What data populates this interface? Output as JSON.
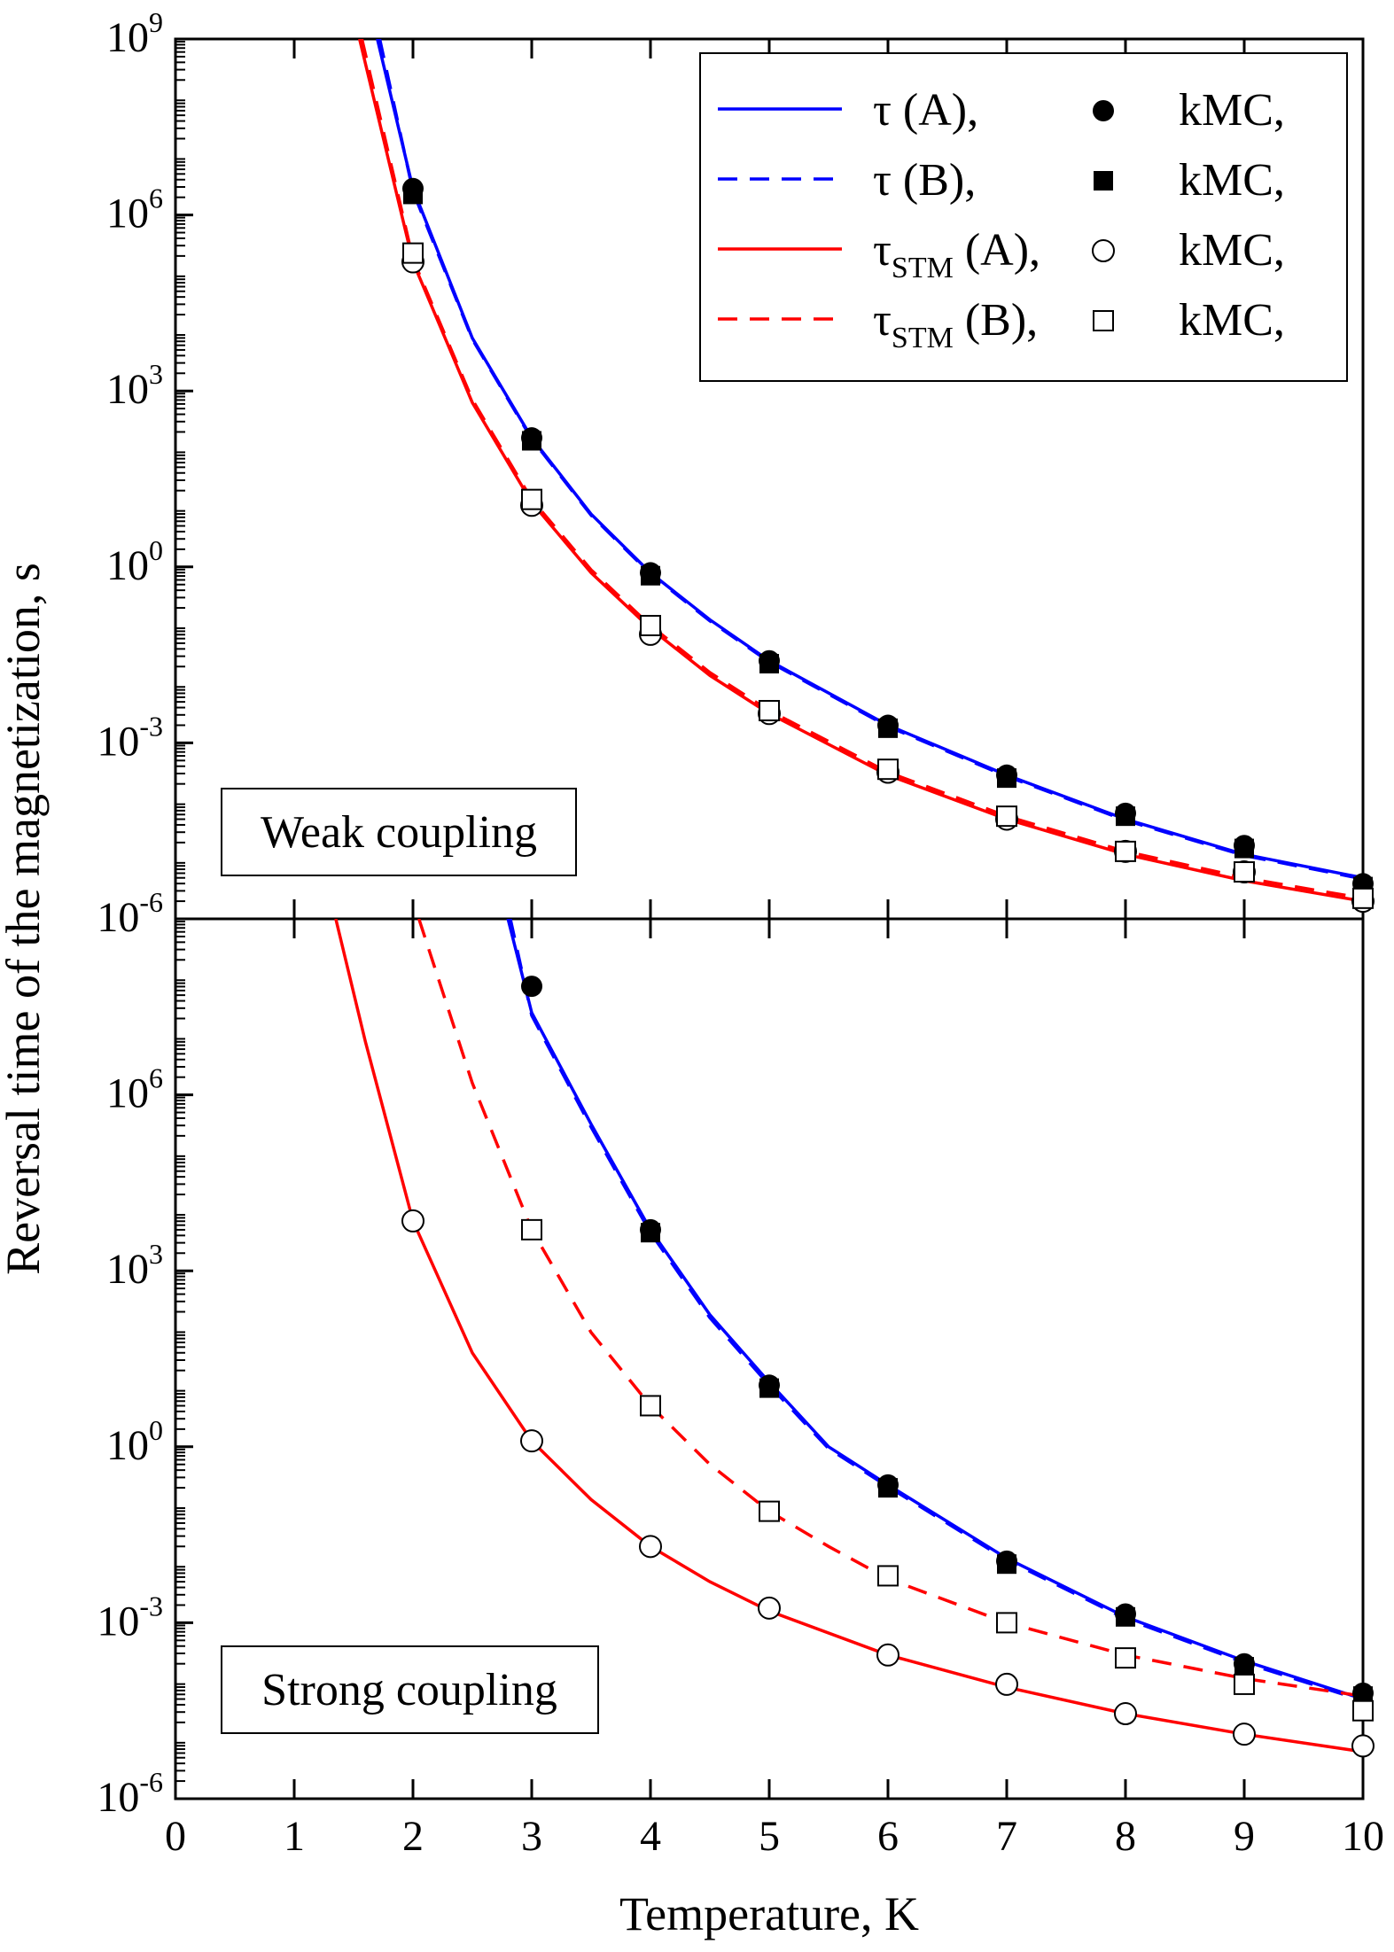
{
  "chart_data": [
    {
      "id": "weak",
      "type": "line",
      "panel": "top",
      "annotation": "Weak coupling",
      "xlim": [
        0,
        10
      ],
      "ylim_log10": [
        -6,
        9
      ],
      "y_tick_exponents": [
        "9",
        "6",
        "3",
        "0",
        "-3",
        "-6"
      ],
      "series": [
        {
          "key": "tauA",
          "name": "τ (A)",
          "style": "solid",
          "color": "#0000ff",
          "curve_log10": [
            [
              1.7,
              9.0
            ],
            [
              2.0,
              6.45
            ],
            [
              2.5,
              3.9
            ],
            [
              3.0,
              2.2
            ],
            [
              3.5,
              0.9
            ],
            [
              4.0,
              -0.1
            ],
            [
              4.5,
              -0.9
            ],
            [
              5.0,
              -1.6
            ],
            [
              6.0,
              -2.7
            ],
            [
              7.0,
              -3.55
            ],
            [
              8.0,
              -4.3
            ],
            [
              9.0,
              -4.9
            ],
            [
              10.0,
              -5.3
            ]
          ]
        },
        {
          "key": "tauB",
          "name": "τ (B)",
          "style": "dashed",
          "color": "#0000ff",
          "curve_log10": [
            [
              1.72,
              9.0
            ],
            [
              2.0,
              6.4
            ],
            [
              2.5,
              3.88
            ],
            [
              3.0,
              2.18
            ],
            [
              3.5,
              0.88
            ],
            [
              4.0,
              -0.12
            ],
            [
              4.5,
              -0.92
            ],
            [
              5.0,
              -1.62
            ],
            [
              6.0,
              -2.72
            ],
            [
              7.0,
              -3.57
            ],
            [
              8.0,
              -4.32
            ],
            [
              9.0,
              -4.92
            ],
            [
              10.0,
              -5.32
            ]
          ]
        },
        {
          "key": "stmA",
          "name": "STM",
          "style": "solid",
          "color": "#ff0000",
          "curve_log10": [
            [
              1.55,
              9.0
            ],
            [
              2.0,
              5.2
            ],
            [
              2.5,
              2.8
            ],
            [
              3.0,
              1.1
            ],
            [
              3.5,
              -0.1
            ],
            [
              4.0,
              -1.05
            ],
            [
              4.5,
              -1.85
            ],
            [
              5.0,
              -2.5
            ],
            [
              6.0,
              -3.55
            ],
            [
              7.0,
              -4.3
            ],
            [
              8.0,
              -4.9
            ],
            [
              9.0,
              -5.35
            ],
            [
              10.0,
              -5.7
            ]
          ]
        },
        {
          "key": "stmB",
          "name": "STM",
          "style": "dashed",
          "color": "#ff0000",
          "curve_log10": [
            [
              1.57,
              9.0
            ],
            [
              2.0,
              5.25
            ],
            [
              2.5,
              2.85
            ],
            [
              3.0,
              1.15
            ],
            [
              3.5,
              -0.05
            ],
            [
              4.0,
              -1.0
            ],
            [
              4.5,
              -1.8
            ],
            [
              5.0,
              -2.45
            ],
            [
              6.0,
              -3.5
            ],
            [
              7.0,
              -4.25
            ],
            [
              8.0,
              -4.85
            ],
            [
              9.0,
              -5.3
            ],
            [
              10.0,
              -5.65
            ]
          ]
        }
      ],
      "markers": [
        {
          "key": "filledCircle",
          "x": [
            2,
            3,
            4,
            5,
            6,
            7,
            8,
            9,
            10
          ],
          "log10": [
            6.45,
            2.2,
            -0.1,
            -1.6,
            -2.7,
            -3.55,
            -4.2,
            -4.75,
            -5.4
          ]
        },
        {
          "key": "filledSquare",
          "x": [
            2,
            3,
            4,
            5,
            6,
            7,
            8,
            9,
            10
          ],
          "log10": [
            6.35,
            2.15,
            -0.15,
            -1.65,
            -2.75,
            -3.6,
            -4.25,
            -4.8,
            -5.45
          ]
        },
        {
          "key": "openCircle",
          "x": [
            2,
            3,
            4,
            5,
            6,
            7,
            8,
            9,
            10
          ],
          "log10": [
            5.2,
            1.05,
            -1.15,
            -2.5,
            -3.5,
            -4.3,
            -4.85,
            -5.2,
            -5.7
          ]
        },
        {
          "key": "openSquare",
          "x": [
            2,
            3,
            4,
            5,
            6,
            7,
            8,
            9,
            10
          ],
          "log10": [
            5.35,
            1.15,
            -1.0,
            -2.45,
            -3.45,
            -4.25,
            -4.85,
            -5.2,
            -5.65
          ]
        }
      ]
    },
    {
      "id": "strong",
      "type": "line",
      "panel": "bottom",
      "annotation": "Strong coupling",
      "xlim": [
        0,
        10
      ],
      "ylim_log10": [
        -6,
        9
      ],
      "y_tick_exponents": [
        "6",
        "3",
        "0",
        "-3",
        "-6"
      ],
      "x_ticks": [
        "0",
        "1",
        "2",
        "3",
        "4",
        "5",
        "6",
        "7",
        "8",
        "9",
        "10"
      ],
      "xlabel": "Temperature, K",
      "series": [
        {
          "key": "tauA",
          "name": "τ (A)",
          "style": "solid",
          "color": "#0000ff",
          "curve_log10": [
            [
              2.8,
              9.0
            ],
            [
              3.0,
              7.4
            ],
            [
              3.5,
              5.5
            ],
            [
              4.0,
              3.7
            ],
            [
              4.5,
              2.25
            ],
            [
              5.0,
              1.1
            ],
            [
              5.5,
              0.0
            ],
            [
              6.0,
              -0.65
            ],
            [
              7.0,
              -1.9
            ],
            [
              8.0,
              -2.9
            ],
            [
              9.0,
              -3.65
            ],
            [
              10.0,
              -4.3
            ]
          ]
        },
        {
          "key": "tauB",
          "name": "τ (B)",
          "style": "dashed",
          "color": "#0000ff",
          "curve_log10": [
            [
              2.82,
              9.0
            ],
            [
              3.0,
              7.35
            ],
            [
              3.5,
              5.45
            ],
            [
              4.0,
              3.65
            ],
            [
              4.5,
              2.2
            ],
            [
              5.0,
              1.05
            ],
            [
              5.5,
              -0.03
            ],
            [
              6.0,
              -0.68
            ],
            [
              7.0,
              -1.93
            ],
            [
              8.0,
              -2.93
            ],
            [
              9.0,
              -3.68
            ],
            [
              10.0,
              -4.33
            ]
          ]
        },
        {
          "key": "stmA",
          "name": "STM",
          "style": "solid",
          "color": "#ff0000",
          "curve_log10": [
            [
              1.35,
              9.0
            ],
            [
              1.6,
              6.9
            ],
            [
              2.0,
              3.85
            ],
            [
              2.5,
              1.6
            ],
            [
              3.0,
              0.1
            ],
            [
              3.5,
              -0.9
            ],
            [
              4.0,
              -1.7
            ],
            [
              4.5,
              -2.3
            ],
            [
              5.0,
              -2.8
            ],
            [
              6.0,
              -3.55
            ],
            [
              7.0,
              -4.1
            ],
            [
              8.0,
              -4.55
            ],
            [
              9.0,
              -4.9
            ],
            [
              10.0,
              -5.2
            ]
          ]
        },
        {
          "key": "stmB",
          "name": "STM",
          "style": "dashed",
          "color": "#ff0000",
          "curve_log10": [
            [
              2.05,
              9.0
            ],
            [
              2.5,
              6.2
            ],
            [
              3.0,
              3.7
            ],
            [
              3.5,
              1.95
            ],
            [
              4.0,
              0.7
            ],
            [
              4.5,
              -0.3
            ],
            [
              5.0,
              -1.1
            ],
            [
              5.5,
              -1.7
            ],
            [
              6.0,
              -2.25
            ],
            [
              7.0,
              -3.0
            ],
            [
              8.0,
              -3.55
            ],
            [
              9.0,
              -3.95
            ],
            [
              10.0,
              -4.25
            ]
          ]
        }
      ],
      "markers": [
        {
          "key": "filledCircle",
          "x": [
            3,
            4,
            5,
            6,
            7,
            8,
            9,
            10
          ],
          "log10": [
            7.85,
            3.7,
            1.05,
            -0.65,
            -1.95,
            -2.85,
            -3.7,
            -4.2
          ]
        },
        {
          "key": "filledSquare",
          "x": [
            4,
            5,
            6,
            7,
            8,
            9,
            10
          ],
          "log10": [
            3.65,
            1.0,
            -0.7,
            -2.0,
            -2.9,
            -3.75,
            -4.25
          ]
        },
        {
          "key": "openCircle",
          "x": [
            2,
            3,
            4,
            5,
            6,
            7,
            8,
            9,
            10
          ],
          "log10": [
            3.85,
            0.1,
            -1.7,
            -2.75,
            -3.55,
            -4.05,
            -4.55,
            -4.9,
            -5.1
          ]
        },
        {
          "key": "openSquare",
          "x": [
            3,
            4,
            5,
            6,
            7,
            8,
            9,
            10
          ],
          "log10": [
            3.7,
            0.7,
            -1.1,
            -2.2,
            -3.0,
            -3.6,
            -4.05,
            -4.5
          ]
        }
      ]
    }
  ],
  "ylabel": "Reversal time of the magnetization, s",
  "tick_base": "10",
  "legend": {
    "position": "top-right",
    "entries": [
      {
        "line": "tauA",
        "symbol": "τ",
        "label": " (A),",
        "sub": "",
        "marker": "filledCircle",
        "marker_label": "kMC,"
      },
      {
        "line": "tauB",
        "symbol": "τ",
        "label": " (B),",
        "sub": "",
        "marker": "filledSquare",
        "marker_label": "kMC,"
      },
      {
        "line": "stmA",
        "symbol": "τ",
        "label": " (A),",
        "sub": "STM",
        "marker": "openCircle",
        "marker_label": "kMC,"
      },
      {
        "line": "stmB",
        "symbol": "τ",
        "label": " (B),",
        "sub": "STM",
        "marker": "openSquare",
        "marker_label": "kMC,"
      }
    ]
  },
  "colors": {
    "blue": "#0000ff",
    "red": "#ff0000",
    "axis": "#000000"
  }
}
